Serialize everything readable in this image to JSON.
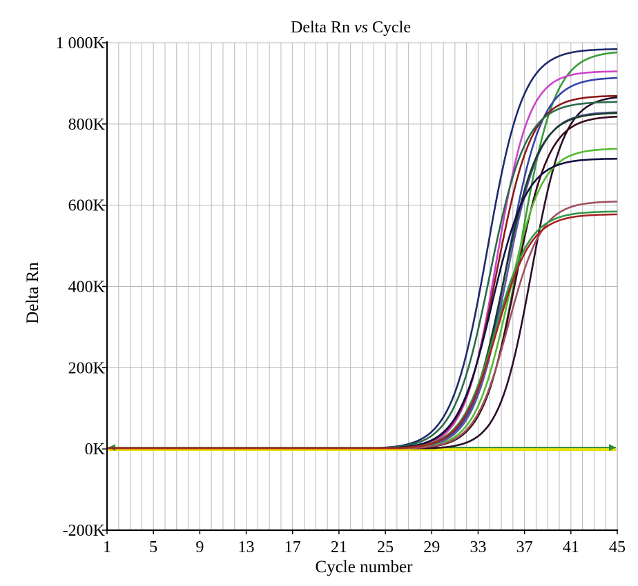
{
  "chart_data": {
    "type": "line",
    "title_parts": {
      "before": "Delta Rn ",
      "italic": "vs",
      "after": " Cycle"
    },
    "xlabel": "Cycle number",
    "ylabel": "Delta Rn",
    "xlim": [
      1,
      45
    ],
    "ylim": [
      -200000,
      1000000
    ],
    "x_ticks": [
      1,
      5,
      9,
      13,
      17,
      21,
      25,
      29,
      33,
      37,
      41,
      45
    ],
    "y_ticks": [
      {
        "value": -200000,
        "label": "-200K"
      },
      {
        "value": 0,
        "label": "0K"
      },
      {
        "value": 200000,
        "label": "200K"
      },
      {
        "value": 400000,
        "label": "400K"
      },
      {
        "value": 600000,
        "label": "600K"
      },
      {
        "value": 800000,
        "label": "800K"
      },
      {
        "value": 1000000,
        "label": "1 000K"
      }
    ],
    "grid": true,
    "threshold": {
      "value": 0,
      "color": "#2e8b3a"
    },
    "series": [
      {
        "color": "#1f2a6b",
        "plateau": 985000,
        "midpoint": 33.8,
        "slope": 1.55
      },
      {
        "color": "#3a9a3a",
        "plateau": 980000,
        "midpoint": 36.6,
        "slope": 1.5
      },
      {
        "color": "#cc44cc",
        "plateau": 930000,
        "midpoint": 34.6,
        "slope": 1.4
      },
      {
        "color": "#3344aa",
        "plateau": 915000,
        "midpoint": 35.5,
        "slope": 1.5
      },
      {
        "color": "#8b1a1a",
        "plateau": 870000,
        "midpoint": 34.6,
        "slope": 1.5
      },
      {
        "color": "#2a0f2a",
        "plateau": 870000,
        "midpoint": 37.6,
        "slope": 1.4
      },
      {
        "color": "#2a6a4a",
        "plateau": 855000,
        "midpoint": 34.0,
        "slope": 1.55
      },
      {
        "color": "#5a5aa0",
        "plateau": 830000,
        "midpoint": 35.4,
        "slope": 1.45
      },
      {
        "color": "#1a3a2a",
        "plateau": 828000,
        "midpoint": 35.2,
        "slope": 1.5
      },
      {
        "color": "#3a0a1a",
        "plateau": 820000,
        "midpoint": 36.2,
        "slope": 1.45
      },
      {
        "color": "#55bb33",
        "plateau": 740000,
        "midpoint": 35.6,
        "slope": 1.45
      },
      {
        "color": "#101040",
        "plateau": 715000,
        "midpoint": 34.2,
        "slope": 1.5
      },
      {
        "color": "#a05060",
        "plateau": 610000,
        "midpoint": 35.6,
        "slope": 1.45
      },
      {
        "color": "#339944",
        "plateau": 585000,
        "midpoint": 34.5,
        "slope": 1.5
      },
      {
        "color": "#aa2222",
        "plateau": 578000,
        "midpoint": 34.6,
        "slope": 1.5
      }
    ]
  }
}
